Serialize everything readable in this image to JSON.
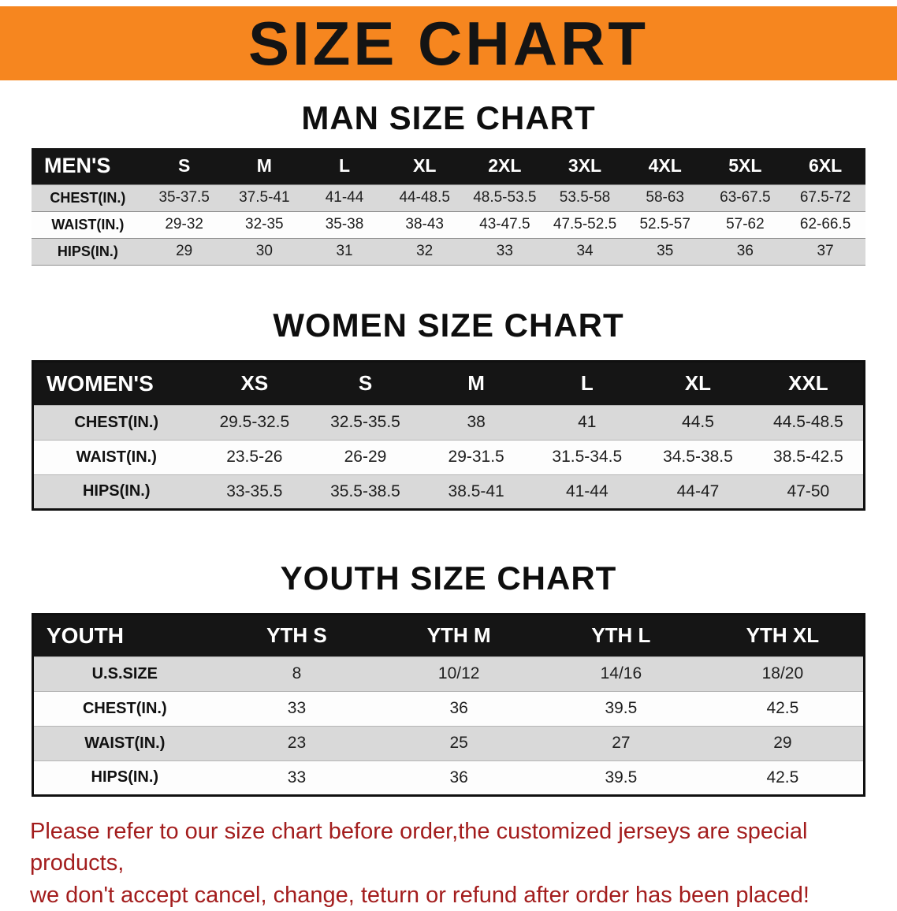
{
  "banner": {
    "title": "SIZE CHART"
  },
  "colors": {
    "banner_bg": "#f6861f",
    "table_header_bg": "#151515",
    "row_alt_gray": "#d9d9d9",
    "disclaimer_red": "#a31d1d"
  },
  "sections": [
    {
      "heading": "MAN SIZE CHART",
      "table": {
        "header": [
          "MEN'S",
          "S",
          "M",
          "L",
          "XL",
          "2XL",
          "3XL",
          "4XL",
          "5XL",
          "6XL"
        ],
        "rows": [
          [
            "CHEST(IN.)",
            "35-37.5",
            "37.5-41",
            "41-44",
            "44-48.5",
            "48.5-53.5",
            "53.5-58",
            "58-63",
            "63-67.5",
            "67.5-72"
          ],
          [
            "WAIST(IN.)",
            "29-32",
            "32-35",
            "35-38",
            "38-43",
            "43-47.5",
            "47.5-52.5",
            "52.5-57",
            "57-62",
            "62-66.5"
          ],
          [
            "HIPS(IN.)",
            "29",
            "30",
            "31",
            "32",
            "33",
            "34",
            "35",
            "36",
            "37"
          ]
        ]
      }
    },
    {
      "heading": "WOMEN SIZE CHART",
      "table": {
        "header": [
          "WOMEN'S",
          "XS",
          "S",
          "M",
          "L",
          "XL",
          "XXL"
        ],
        "rows": [
          [
            "CHEST(IN.)",
            "29.5-32.5",
            "32.5-35.5",
            "38",
            "41",
            "44.5",
            "44.5-48.5"
          ],
          [
            "WAIST(IN.)",
            "23.5-26",
            "26-29",
            "29-31.5",
            "31.5-34.5",
            "34.5-38.5",
            "38.5-42.5"
          ],
          [
            "HIPS(IN.)",
            "33-35.5",
            "35.5-38.5",
            "38.5-41",
            "41-44",
            "44-47",
            "47-50"
          ]
        ]
      }
    },
    {
      "heading": "YOUTH SIZE CHART",
      "table": {
        "header": [
          "YOUTH",
          "YTH S",
          "YTH M",
          "YTH L",
          "YTH XL"
        ],
        "rows": [
          [
            "U.S.SIZE",
            "8",
            "10/12",
            "14/16",
            "18/20"
          ],
          [
            "CHEST(IN.)",
            "33",
            "36",
            "39.5",
            "42.5"
          ],
          [
            "WAIST(IN.)",
            "23",
            "25",
            "27",
            "29"
          ],
          [
            "HIPS(IN.)",
            "33",
            "36",
            "39.5",
            "42.5"
          ]
        ]
      }
    }
  ],
  "disclaimer": {
    "line1": "Please refer to our size chart before order,the customized jerseys are special products,",
    "line2": "we don't accept cancel, change, teturn or refund after order has been placed!"
  }
}
